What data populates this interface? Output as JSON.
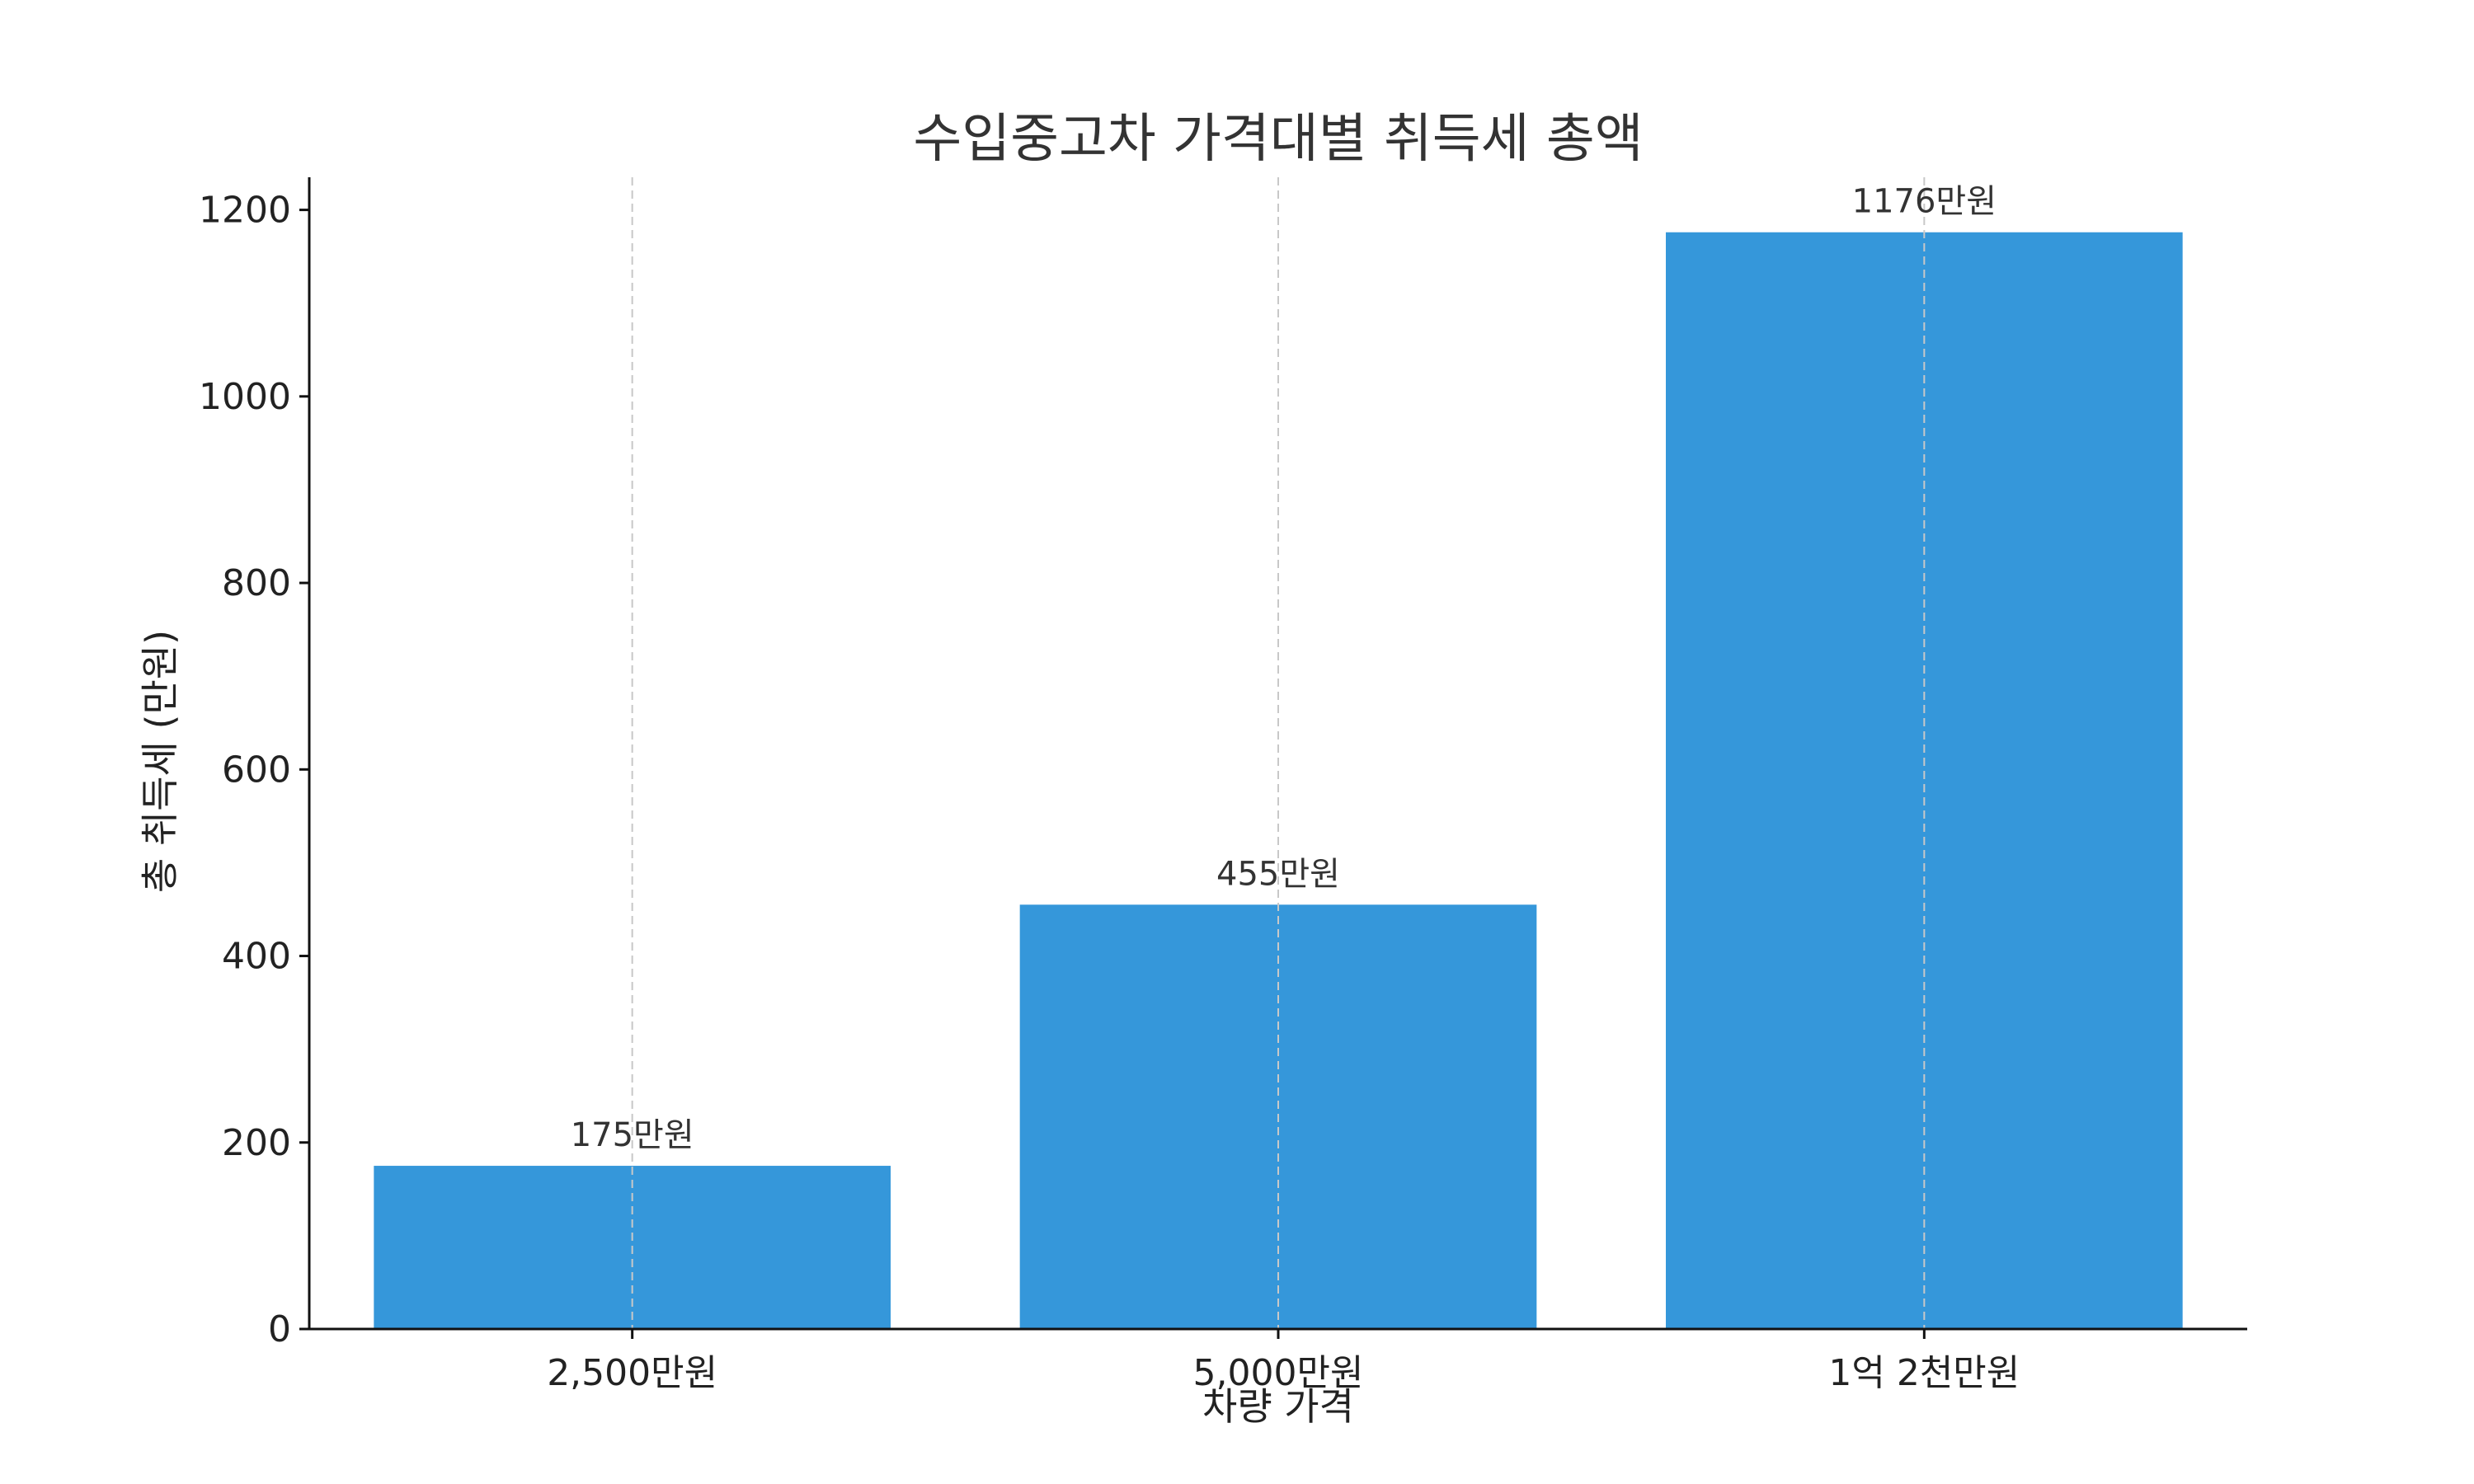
{
  "chart_data": {
    "type": "bar",
    "title": "수입중고차 가격대별 취득세 총액",
    "xlabel": "차량 가격",
    "ylabel": "총 취득세 (만원)",
    "categories": [
      "2,500만원",
      "5,000만원",
      "1억 2천만원"
    ],
    "values": [
      175,
      455,
      1176
    ],
    "value_labels": [
      "175만원",
      "455만원",
      "1176만원"
    ],
    "yticks": [
      0,
      200,
      400,
      600,
      800,
      1000,
      1200
    ],
    "ytick_labels": [
      "0",
      "200",
      "400",
      "600",
      "800",
      "1000",
      "1200"
    ],
    "ylim": [
      0,
      1235
    ],
    "grid": "vertical dashed at category centers",
    "bar_color": "#3597DA"
  }
}
